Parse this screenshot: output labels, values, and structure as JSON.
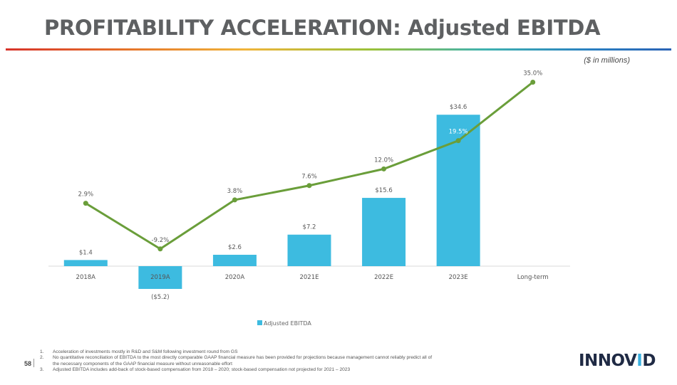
{
  "header": {
    "title": "PROFITABILITY ACCELERATION: Adjusted EBITDA",
    "units": "($ in millions)"
  },
  "chart_data": {
    "type": "bar",
    "categories": [
      "2018A",
      "2019A",
      "2020A",
      "2021E",
      "2022E",
      "2023E",
      "Long-term"
    ],
    "series": [
      {
        "name": "Adjusted EBITDA",
        "type": "bar",
        "values": [
          1.4,
          -5.2,
          2.6,
          7.2,
          15.6,
          34.6,
          null
        ],
        "labels": [
          "$1.4",
          "($5.2)",
          "$2.6",
          "$7.2",
          "$15.6",
          "$34.6",
          ""
        ],
        "color": "#3dbbe0"
      },
      {
        "type": "line",
        "values": [
          2.9,
          -9.2,
          3.8,
          7.6,
          12.0,
          19.5,
          35.0
        ],
        "labels": [
          "2.9%",
          "-9.2%",
          "3.8%",
          "7.6%",
          "12.0%",
          "19.5%",
          "35.0%"
        ],
        "color": "#6a9e3a"
      }
    ],
    "legend": {
      "position": "bottom",
      "entries": [
        "Adjusted EBITDA"
      ]
    },
    "grid": false
  },
  "footer": {
    "page_number": "58",
    "notes": [
      {
        "num": "1.",
        "text": "Acceleration of investments mostly in R&D and S&M following investment round from GS"
      },
      {
        "num": "2.",
        "text": "No quantitative reconciliation of EBITDA to the most directly comparable GAAP financial measure has been provided for projections because management cannot reliably predict all of the necessary components of the GAAP financial measure without unreasonable effort"
      },
      {
        "num": "3.",
        "text": "Adjusted EBITDA includes add-back of stock-based compensation from 2018 – 2020; stock-based compensation not projected for 2021 – 2023"
      }
    ],
    "logo": {
      "main": "INNOV",
      "accent": "I",
      "end": "D"
    }
  }
}
